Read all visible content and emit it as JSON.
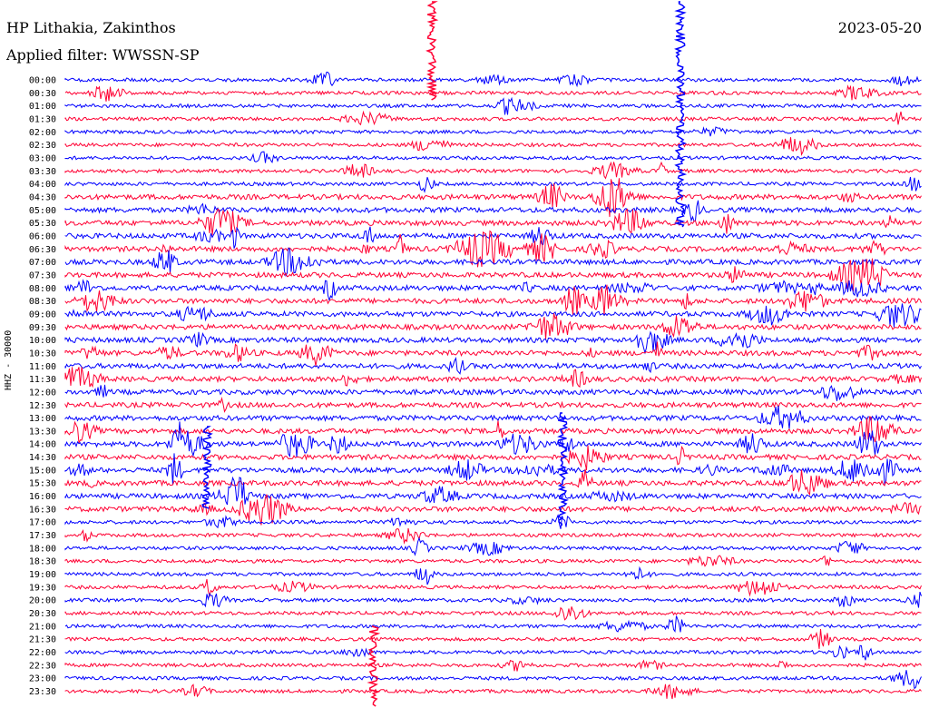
{
  "header": {
    "station": "HP Lithakia, Zakinthos",
    "filter": "Applied filter: WWSSN-SP",
    "date": "2023-05-20"
  },
  "chart_data": {
    "type": "line",
    "title": "HP Lithakia, Zakinthos",
    "subtitle": "Applied filter: WWSSN-SP",
    "ylabel": "HHZ - 30000",
    "date": "2023-05-20",
    "rows": [
      "00:00",
      "00:30",
      "01:00",
      "01:30",
      "02:00",
      "02:30",
      "03:00",
      "03:30",
      "04:00",
      "04:30",
      "05:00",
      "05:30",
      "06:00",
      "06:30",
      "07:00",
      "07:30",
      "08:00",
      "08:30",
      "09:00",
      "09:30",
      "10:00",
      "10:30",
      "11:00",
      "11:30",
      "12:00",
      "12:30",
      "13:00",
      "13:30",
      "14:00",
      "14:30",
      "15:00",
      "15:30",
      "16:00",
      "16:30",
      "17:00",
      "17:30",
      "18:00",
      "18:30",
      "19:00",
      "19:30",
      "20:00",
      "20:30",
      "21:00",
      "21:30",
      "22:00",
      "22:30",
      "23:00",
      "23:30"
    ],
    "colors": [
      "#0000ff",
      "#ff0033"
    ],
    "grid": false
  }
}
